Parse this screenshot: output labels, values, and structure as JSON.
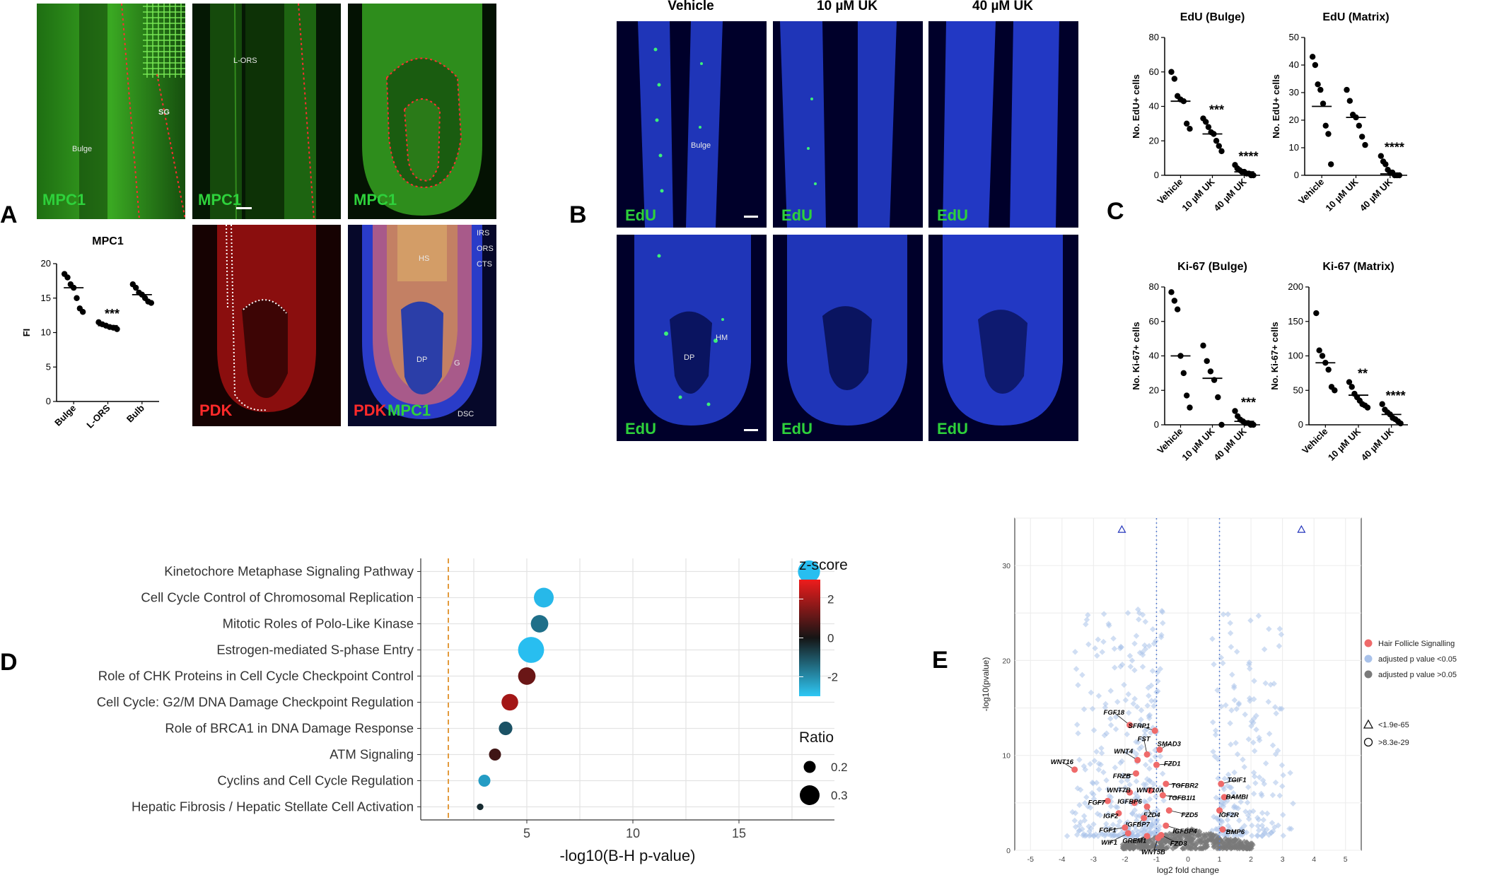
{
  "panel_letters": {
    "a": "A",
    "b": "B",
    "c": "C",
    "d": "D",
    "e": "E"
  },
  "panelA": {
    "micro_labels": {
      "m1": "MPC1",
      "m2": "MPC1",
      "m3": "MPC1",
      "p1": "PDK",
      "p2a": "PDK",
      "p2b": "MPC1"
    },
    "annotations": {
      "bulge": "Bulge",
      "sg": "SG",
      "lors": "L-ORS",
      "hs": "HS",
      "dp": "DP",
      "irs": "IRS",
      "ors": "ORS",
      "cts": "CTS",
      "g": "G",
      "dsc": "DSC"
    }
  },
  "panelB": {
    "headers": [
      "Vehicle",
      "10 µM UK",
      "40 µM UK"
    ],
    "edu_label": "EdU",
    "annotations": {
      "bulge": "Bulge",
      "dp": "DP",
      "hm": "HM"
    }
  },
  "colors": {
    "green": "#2ed13b",
    "red": "#e01818",
    "blue": "#2a55ff",
    "orange": "#e39a3c",
    "light_blue": "#a9c2ea",
    "gray_pt": "#7a7a7a",
    "pink": "#ef6a6a"
  },
  "chart_data": [
    {
      "id": "mpc1",
      "type": "scatter",
      "title": "MPC1",
      "ylabel": "FI",
      "categories": [
        "Bulge",
        "L-ORS",
        "Bulb"
      ],
      "points": [
        [
          18.5,
          18,
          17,
          16.5,
          15,
          13.5,
          13
        ],
        [
          11.5,
          11.2,
          11,
          10.8,
          10.7,
          10.5
        ],
        [
          17,
          16.5,
          15.8,
          15.5,
          15,
          14.5,
          14.3
        ]
      ],
      "means": [
        16.5,
        11.0,
        15.5
      ],
      "significance": [
        "",
        "***",
        ""
      ],
      "ylim": [
        0,
        20
      ],
      "yticks": [
        0,
        5,
        10,
        15,
        20
      ]
    },
    {
      "id": "edu_bulge",
      "type": "scatter",
      "title": "EdU (Bulge)",
      "ylabel": "No. EdU+ cells",
      "categories": [
        "Vehicle",
        "10 µM UK",
        "40 µM UK"
      ],
      "points": [
        [
          60,
          56,
          46,
          44,
          43,
          30,
          27
        ],
        [
          33,
          31,
          28,
          25,
          24,
          20,
          17,
          14
        ],
        [
          6,
          4,
          3,
          2,
          2,
          1,
          1,
          0,
          0
        ]
      ],
      "means": [
        43,
        24,
        2
      ],
      "significance": [
        "",
        "***",
        "****"
      ],
      "ylim": [
        0,
        80
      ],
      "yticks": [
        0,
        20,
        40,
        60,
        80
      ]
    },
    {
      "id": "edu_matrix",
      "type": "scatter",
      "title": "EdU (Matrix)",
      "ylabel": "No. EdU+ cells",
      "categories": [
        "Vehicle",
        "10 µM UK",
        "40 µM UK"
      ],
      "points": [
        [
          43,
          40,
          33,
          31,
          26,
          18,
          15,
          4
        ],
        [
          31,
          27,
          22,
          21,
          18,
          14,
          11
        ],
        [
          7,
          5,
          4,
          2,
          1,
          1,
          0,
          0,
          0
        ]
      ],
      "means": [
        25,
        21,
        0.5
      ],
      "significance": [
        "",
        "",
        "****"
      ],
      "ylim": [
        0,
        50
      ],
      "yticks": [
        0,
        10,
        20,
        30,
        40,
        50
      ]
    },
    {
      "id": "ki67_bulge",
      "type": "scatter",
      "title": "Ki-67 (Bulge)",
      "ylabel": "No. Ki-67+ cells",
      "categories": [
        "Vehicle",
        "10 µM UK",
        "40 µM UK"
      ],
      "points": [
        [
          77,
          72,
          67,
          40,
          30,
          17,
          10
        ],
        [
          46,
          37,
          31,
          26,
          16,
          0
        ],
        [
          8,
          5,
          3,
          2,
          1,
          1,
          0,
          0
        ]
      ],
      "means": [
        40,
        27,
        2
      ],
      "significance": [
        "",
        "",
        "***"
      ],
      "ylim": [
        0,
        80
      ],
      "yticks": [
        0,
        20,
        40,
        60,
        80
      ]
    },
    {
      "id": "ki67_matrix",
      "type": "scatter",
      "title": "Ki-67 (Matrix)",
      "ylabel": "No. Ki-67+ cells",
      "categories": [
        "Vehicle",
        "10 µM UK",
        "40 µM UK"
      ],
      "points": [
        [
          162,
          108,
          100,
          90,
          80,
          55,
          50
        ],
        [
          62,
          55,
          45,
          40,
          35,
          30,
          28,
          25
        ],
        [
          30,
          22,
          18,
          15,
          10,
          8,
          5,
          2
        ]
      ],
      "means": [
        90,
        43,
        15
      ],
      "significance": [
        "",
        "**",
        "****"
      ],
      "ylim": [
        0,
        200
      ],
      "yticks": [
        0,
        50,
        100,
        150,
        200
      ]
    },
    {
      "id": "pathways",
      "type": "scatter",
      "xlabel": "-log10(B-H p-value)",
      "xticks": [
        5,
        10,
        15
      ],
      "xlim": [
        0,
        19.5
      ],
      "threshold": 1.3,
      "pathways": [
        {
          "name": "Kinetochore Metaphase Signaling Pathway",
          "x": 18.3,
          "z": -3.0,
          "ratio": 0.33
        },
        {
          "name": "Cell Cycle Control of Chromosomal Replication",
          "x": 5.8,
          "z": -2.9,
          "ratio": 0.3
        },
        {
          "name": "Mitotic Roles of Polo-Like Kinase",
          "x": 5.6,
          "z": -1.6,
          "ratio": 0.27
        },
        {
          "name": "Estrogen-mediated S-phase Entry",
          "x": 5.2,
          "z": -3.0,
          "ratio": 0.38
        },
        {
          "name": "Role of CHK Proteins in Cell Cycle Checkpoint Control",
          "x": 5.0,
          "z": 1.2,
          "ratio": 0.27
        },
        {
          "name": "Cell Cycle: G2/M DNA Damage Checkpoint Regulation",
          "x": 4.2,
          "z": 2.0,
          "ratio": 0.26
        },
        {
          "name": "Role of BRCA1 in DNA Damage Response",
          "x": 4.0,
          "z": -1.1,
          "ratio": 0.22
        },
        {
          "name": "ATM Signaling",
          "x": 3.5,
          "z": 0.6,
          "ratio": 0.2
        },
        {
          "name": "Cyclins and Cell Cycle Regulation",
          "x": 3.0,
          "z": -2.4,
          "ratio": 0.2
        },
        {
          "name": "Hepatic Fibrosis / Hepatic Stellate Cell Activation",
          "x": 2.8,
          "z": -0.4,
          "ratio": 0.13
        }
      ],
      "colorbar": {
        "title": "z-score",
        "ticks": [
          "2",
          "0",
          "-2"
        ],
        "range": [
          -3,
          3
        ]
      },
      "size_legend": {
        "title": "Ratio",
        "entries": [
          {
            "label": "0.2",
            "ratio": 0.2
          },
          {
            "label": "0.3",
            "ratio": 0.3
          }
        ]
      }
    },
    {
      "id": "volcano",
      "type": "scatter",
      "xlabel": "log2 fold change",
      "ylabel": "-log10(pvalue)",
      "xlim": [
        -5.5,
        5.5
      ],
      "ylim": [
        0,
        35
      ],
      "xticks": [
        "-5",
        "-4",
        "-3",
        "-2",
        "-1",
        "0",
        "1",
        "2",
        "3",
        "4",
        "5"
      ],
      "yticks": [
        "0",
        "10",
        "20",
        "30"
      ],
      "thresholds_x": [
        -1,
        1
      ],
      "triangles": [
        [
          -2.1,
          33.8
        ],
        [
          3.6,
          33.8
        ]
      ],
      "genes": [
        {
          "name": "FGF18",
          "x": -1.85,
          "y": 13.2,
          "lx": -2.35,
          "ly": 14.3
        },
        {
          "name": "SFRP1",
          "x": -1.05,
          "y": 12.6,
          "lx": -1.55,
          "ly": 12.9
        },
        {
          "name": "FST",
          "x": -1.3,
          "y": 10.1,
          "lx": -1.4,
          "ly": 11.5
        },
        {
          "name": "SMAD3",
          "x": -0.9,
          "y": 10.6,
          "lx": -0.6,
          "ly": 11.0
        },
        {
          "name": "WNT4",
          "x": -1.6,
          "y": 9.5,
          "lx": -2.05,
          "ly": 10.2
        },
        {
          "name": "FZD1",
          "x": -1.0,
          "y": 9.0,
          "lx": -0.5,
          "ly": 8.9
        },
        {
          "name": "WNT16",
          "x": -3.6,
          "y": 8.5,
          "lx": -4.0,
          "ly": 9.1
        },
        {
          "name": "FRZB",
          "x": -1.65,
          "y": 8.1,
          "lx": -2.1,
          "ly": 7.6
        },
        {
          "name": "TGFBR2",
          "x": -0.7,
          "y": 7.0,
          "lx": -0.1,
          "ly": 6.6
        },
        {
          "name": "TGIF1",
          "x": 1.05,
          "y": 7.0,
          "lx": 1.55,
          "ly": 7.2
        },
        {
          "name": "WNT7B",
          "x": -1.85,
          "y": 6.1,
          "lx": -2.2,
          "ly": 6.1
        },
        {
          "name": "WNT10A",
          "x": -1.2,
          "y": 6.3,
          "lx": -1.2,
          "ly": 6.1
        },
        {
          "name": "TGFB1I1",
          "x": -0.8,
          "y": 5.8,
          "lx": -0.2,
          "ly": 5.3
        },
        {
          "name": "FGF7",
          "x": -2.55,
          "y": 5.2,
          "lx": -2.9,
          "ly": 4.8
        },
        {
          "name": "IGFBP6",
          "x": -1.7,
          "y": 5.0,
          "lx": -1.85,
          "ly": 4.9
        },
        {
          "name": "BAMBI",
          "x": 1.15,
          "y": 5.6,
          "lx": 1.55,
          "ly": 5.4
        },
        {
          "name": "IGF2",
          "x": -2.2,
          "y": 3.9,
          "lx": -2.45,
          "ly": 3.4
        },
        {
          "name": "FZD4",
          "x": -1.3,
          "y": 4.6,
          "lx": -1.15,
          "ly": 3.5
        },
        {
          "name": "FZD5",
          "x": -0.6,
          "y": 4.2,
          "lx": 0.05,
          "ly": 3.5
        },
        {
          "name": "IGF2R",
          "x": 1.0,
          "y": 4.2,
          "lx": 1.3,
          "ly": 3.5
        },
        {
          "name": "IGFBP7",
          "x": -1.4,
          "y": 3.4,
          "lx": -1.6,
          "ly": 2.5
        },
        {
          "name": "FGF1",
          "x": -2.0,
          "y": 2.4,
          "lx": -2.55,
          "ly": 1.9
        },
        {
          "name": "IGFBP4",
          "x": -0.7,
          "y": 2.6,
          "lx": -0.1,
          "ly": 1.8
        },
        {
          "name": "BMP6",
          "x": 1.1,
          "y": 2.2,
          "lx": 1.5,
          "ly": 1.7
        },
        {
          "name": "WIF1",
          "x": -1.9,
          "y": 1.8,
          "lx": -2.5,
          "ly": 0.6
        },
        {
          "name": "GREM1",
          "x": -1.3,
          "y": 1.5,
          "lx": -1.7,
          "ly": 0.8
        },
        {
          "name": "FZD8",
          "x": -0.85,
          "y": 1.6,
          "lx": -0.3,
          "ly": 0.5
        },
        {
          "name": "WNT5B",
          "x": -0.95,
          "y": 1.3,
          "lx": -1.1,
          "ly": -0.4
        }
      ],
      "legend": {
        "items": [
          "Hair Follicle Signalling",
          "adjusted p value <0.05",
          "adjusted p value >0.05"
        ],
        "shapes": [
          "<1.9e-65",
          ">8.3e-29"
        ]
      }
    }
  ]
}
